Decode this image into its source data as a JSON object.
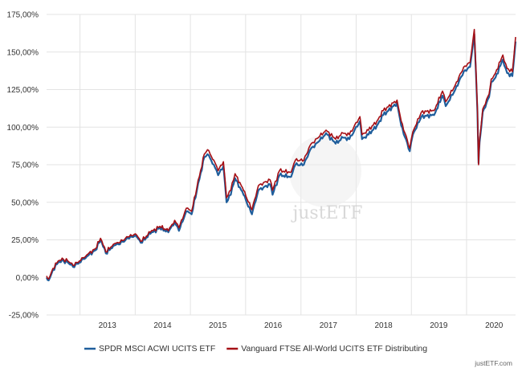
{
  "chart_data": {
    "type": "line",
    "title": "",
    "xlabel": "",
    "ylabel": "",
    "x_ticks": [
      "2013",
      "2014",
      "2015",
      "2016",
      "2017",
      "2018",
      "2019",
      "2020"
    ],
    "y_ticks": [
      "-25,00%",
      "0,00%",
      "25,00%",
      "50,00%",
      "75,00%",
      "100,00%",
      "125,00%",
      "150,00%",
      "175,00%"
    ],
    "xlim": [
      "2012-05-25",
      "2020-11-20"
    ],
    "ylim": [
      -25,
      175
    ],
    "grid": true,
    "legend_position": "bottom",
    "watermark": "justETF",
    "credit": "justETF.com",
    "series": [
      {
        "name": "SPDR MSCI ACWI UCITS ETF",
        "color": "#1f5e9c",
        "points": [
          [
            "2012-05-25",
            0
          ],
          [
            "2012-06-08",
            -2
          ],
          [
            "2012-07-06",
            5
          ],
          [
            "2012-08-10",
            10
          ],
          [
            "2012-09-14",
            11
          ],
          [
            "2012-10-12",
            10
          ],
          [
            "2012-11-16",
            7
          ],
          [
            "2012-12-28",
            10
          ],
          [
            "2013-02-15",
            14
          ],
          [
            "2013-04-12",
            18
          ],
          [
            "2013-05-17",
            25
          ],
          [
            "2013-06-21",
            16
          ],
          [
            "2013-08-09",
            21
          ],
          [
            "2013-09-13",
            22
          ],
          [
            "2013-11-15",
            26
          ],
          [
            "2014-01-03",
            28
          ],
          [
            "2014-02-07",
            23
          ],
          [
            "2014-04-11",
            29
          ],
          [
            "2014-06-13",
            33
          ],
          [
            "2014-08-08",
            30
          ],
          [
            "2014-09-19",
            37
          ],
          [
            "2014-10-17",
            31
          ],
          [
            "2014-12-05",
            44
          ],
          [
            "2015-01-09",
            42
          ],
          [
            "2015-02-13",
            58
          ],
          [
            "2015-04-03",
            80
          ],
          [
            "2015-04-24",
            82
          ],
          [
            "2015-06-05",
            75
          ],
          [
            "2015-07-03",
            68
          ],
          [
            "2015-08-07",
            74
          ],
          [
            "2015-08-28",
            50
          ],
          [
            "2015-09-25",
            55
          ],
          [
            "2015-10-23",
            66
          ],
          [
            "2015-12-18",
            55
          ],
          [
            "2016-02-12",
            42
          ],
          [
            "2016-03-25",
            58
          ],
          [
            "2016-06-10",
            62
          ],
          [
            "2016-06-27",
            55
          ],
          [
            "2016-08-12",
            68
          ],
          [
            "2016-10-28",
            67
          ],
          [
            "2016-11-25",
            75
          ],
          [
            "2017-01-20",
            75
          ],
          [
            "2017-03-03",
            85
          ],
          [
            "2017-05-05",
            91
          ],
          [
            "2017-06-16",
            96
          ],
          [
            "2017-08-18",
            89
          ],
          [
            "2017-10-06",
            93
          ],
          [
            "2017-11-17",
            92
          ],
          [
            "2018-01-26",
            104
          ],
          [
            "2018-02-09",
            92
          ],
          [
            "2018-03-23",
            95
          ],
          [
            "2018-05-18",
            101
          ],
          [
            "2018-06-29",
            108
          ],
          [
            "2018-09-28",
            116
          ],
          [
            "2018-10-26",
            101
          ],
          [
            "2018-12-21",
            84
          ],
          [
            "2019-01-11",
            95
          ],
          [
            "2019-03-08",
            107
          ],
          [
            "2019-05-31",
            108
          ],
          [
            "2019-07-26",
            121
          ],
          [
            "2019-08-16",
            114
          ],
          [
            "2019-10-18",
            125
          ],
          [
            "2019-12-13",
            137
          ],
          [
            "2020-01-24",
            140
          ],
          [
            "2020-02-21",
            162
          ],
          [
            "2020-03-13",
            110
          ],
          [
            "2020-03-20",
            76
          ],
          [
            "2020-03-27",
            90
          ],
          [
            "2020-04-17",
            110
          ],
          [
            "2020-05-29",
            120
          ],
          [
            "2020-06-12",
            130
          ],
          [
            "2020-07-10",
            133
          ],
          [
            "2020-08-28",
            145
          ],
          [
            "2020-09-25",
            136
          ],
          [
            "2020-10-30",
            134
          ],
          [
            "2020-11-20",
            157
          ]
        ]
      },
      {
        "name": "Vanguard FTSE All-World UCITS ETF Distributing",
        "color": "#a50f15",
        "points": [
          [
            "2012-05-25",
            1
          ],
          [
            "2012-06-08",
            -1
          ],
          [
            "2012-07-06",
            6
          ],
          [
            "2012-08-10",
            11
          ],
          [
            "2012-09-14",
            12
          ],
          [
            "2012-10-12",
            11
          ],
          [
            "2012-11-16",
            8
          ],
          [
            "2012-12-28",
            11
          ],
          [
            "2013-02-15",
            15
          ],
          [
            "2013-04-12",
            19
          ],
          [
            "2013-05-17",
            26
          ],
          [
            "2013-06-21",
            17
          ],
          [
            "2013-08-09",
            22
          ],
          [
            "2013-09-13",
            23
          ],
          [
            "2013-11-15",
            27
          ],
          [
            "2014-01-03",
            29
          ],
          [
            "2014-02-07",
            24
          ],
          [
            "2014-04-11",
            30
          ],
          [
            "2014-06-13",
            34
          ],
          [
            "2014-08-08",
            31
          ],
          [
            "2014-09-19",
            38
          ],
          [
            "2014-10-17",
            33
          ],
          [
            "2014-12-05",
            46
          ],
          [
            "2015-01-09",
            44
          ],
          [
            "2015-02-13",
            60
          ],
          [
            "2015-04-03",
            82
          ],
          [
            "2015-04-24",
            85
          ],
          [
            "2015-06-05",
            78
          ],
          [
            "2015-07-03",
            71
          ],
          [
            "2015-08-07",
            77
          ],
          [
            "2015-08-28",
            53
          ],
          [
            "2015-09-25",
            58
          ],
          [
            "2015-10-23",
            69
          ],
          [
            "2015-12-18",
            58
          ],
          [
            "2016-02-12",
            45
          ],
          [
            "2016-03-25",
            61
          ],
          [
            "2016-06-10",
            65
          ],
          [
            "2016-06-27",
            58
          ],
          [
            "2016-08-12",
            71
          ],
          [
            "2016-10-28",
            70
          ],
          [
            "2016-11-25",
            78
          ],
          [
            "2017-01-20",
            78
          ],
          [
            "2017-03-03",
            88
          ],
          [
            "2017-05-05",
            94
          ],
          [
            "2017-06-16",
            98
          ],
          [
            "2017-08-18",
            92
          ],
          [
            "2017-10-06",
            96
          ],
          [
            "2017-11-17",
            95
          ],
          [
            "2018-01-26",
            107
          ],
          [
            "2018-02-09",
            95
          ],
          [
            "2018-03-23",
            98
          ],
          [
            "2018-05-18",
            104
          ],
          [
            "2018-06-29",
            111
          ],
          [
            "2018-09-28",
            118
          ],
          [
            "2018-10-26",
            104
          ],
          [
            "2018-12-21",
            86
          ],
          [
            "2019-01-11",
            97
          ],
          [
            "2019-03-08",
            110
          ],
          [
            "2019-05-31",
            111
          ],
          [
            "2019-07-26",
            124
          ],
          [
            "2019-08-16",
            117
          ],
          [
            "2019-10-18",
            128
          ],
          [
            "2019-12-13",
            140
          ],
          [
            "2020-01-24",
            143
          ],
          [
            "2020-02-21",
            165
          ],
          [
            "2020-03-13",
            112
          ],
          [
            "2020-03-20",
            75
          ],
          [
            "2020-03-27",
            92
          ],
          [
            "2020-04-17",
            112
          ],
          [
            "2020-05-29",
            122
          ],
          [
            "2020-06-12",
            132
          ],
          [
            "2020-07-10",
            136
          ],
          [
            "2020-08-28",
            148
          ],
          [
            "2020-09-25",
            139
          ],
          [
            "2020-10-30",
            137
          ],
          [
            "2020-11-20",
            160
          ]
        ]
      }
    ]
  }
}
